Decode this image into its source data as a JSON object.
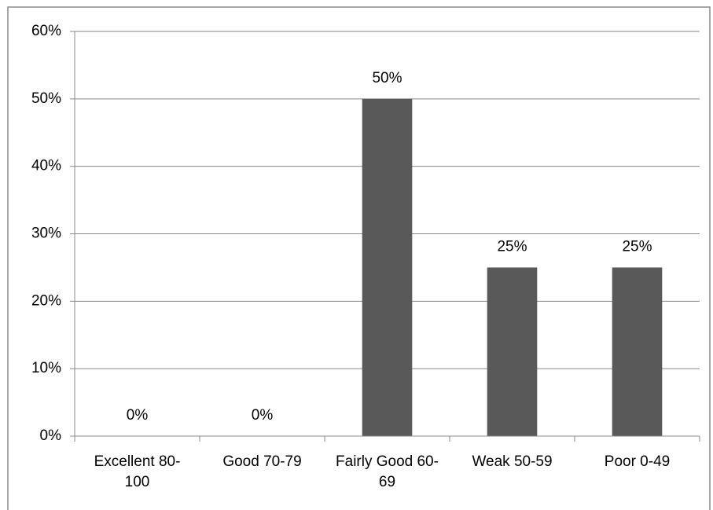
{
  "chart_data": {
    "type": "bar",
    "categories": [
      "Excellent 80-100",
      "Good 70-79",
      "Fairly Good 60-69",
      "Weak 50-59",
      "Poor 0-49"
    ],
    "values": [
      0,
      0,
      50,
      25,
      25
    ],
    "value_labels": [
      "0%",
      "0%",
      "50%",
      "25%",
      "25%"
    ],
    "color": "#595959",
    "ylim": [
      0,
      60
    ],
    "yticks": [
      {
        "value": 0,
        "label": "0%"
      },
      {
        "value": 10,
        "label": "10%"
      },
      {
        "value": 20,
        "label": "20%"
      },
      {
        "value": 30,
        "label": "30%"
      },
      {
        "value": 40,
        "label": "40%"
      },
      {
        "value": 50,
        "label": "50%"
      },
      {
        "value": 60,
        "label": "60%"
      }
    ],
    "grid": true
  }
}
